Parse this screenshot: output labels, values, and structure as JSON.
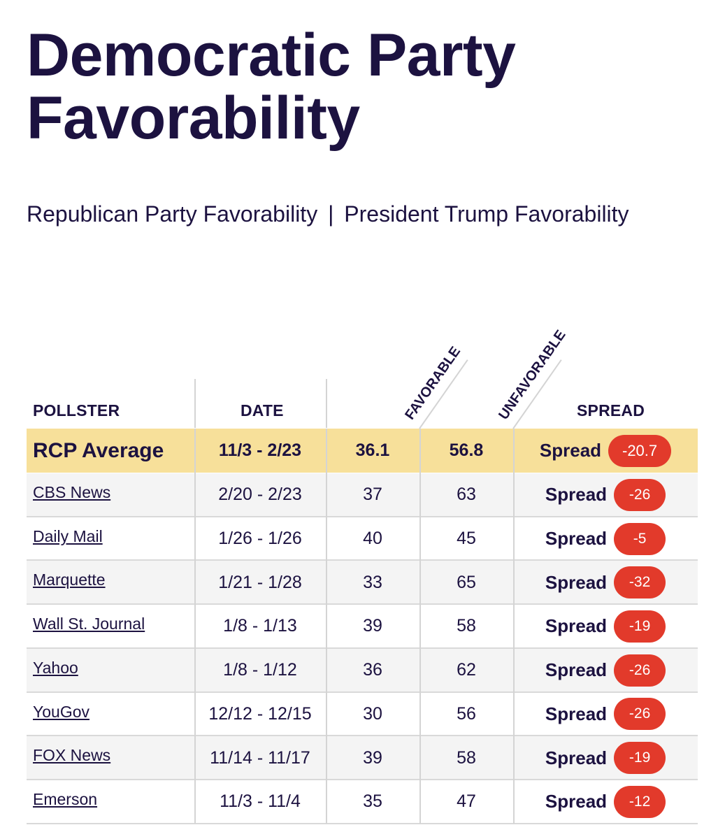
{
  "page": {
    "title": "Democratic Party Favorability",
    "related_links": [
      "Republican Party Favorability",
      "President Trump Favorability"
    ],
    "separator": "|"
  },
  "table": {
    "headers": {
      "pollster": "POLLSTER",
      "date": "DATE",
      "favorable": "FAVORABLE",
      "unfavorable": "UNFAVORABLE",
      "spread": "SPREAD"
    },
    "spread_label": "Spread",
    "average": {
      "pollster": "RCP Average",
      "date": "11/3 - 2/23",
      "favorable": "36.1",
      "unfavorable": "56.8",
      "spread": "-20.7"
    },
    "rows": [
      {
        "pollster": "CBS News",
        "date": "2/20 - 2/23",
        "favorable": "37",
        "unfavorable": "63",
        "spread": "-26"
      },
      {
        "pollster": "Daily Mail",
        "date": "1/26 - 1/26",
        "favorable": "40",
        "unfavorable": "45",
        "spread": "-5"
      },
      {
        "pollster": "Marquette",
        "date": "1/21 - 1/28",
        "favorable": "33",
        "unfavorable": "65",
        "spread": "-32"
      },
      {
        "pollster": "Wall St. Journal",
        "date": "1/8 - 1/13",
        "favorable": "39",
        "unfavorable": "58",
        "spread": "-19"
      },
      {
        "pollster": "Yahoo",
        "date": "1/8 - 1/12",
        "favorable": "36",
        "unfavorable": "62",
        "spread": "-26"
      },
      {
        "pollster": "YouGov",
        "date": "12/12 - 12/15",
        "favorable": "30",
        "unfavorable": "56",
        "spread": "-26"
      },
      {
        "pollster": "FOX News",
        "date": "11/14 - 11/17",
        "favorable": "39",
        "unfavorable": "58",
        "spread": "-19"
      },
      {
        "pollster": "Emerson",
        "date": "11/3 - 11/4",
        "favorable": "35",
        "unfavorable": "47",
        "spread": "-12"
      }
    ]
  },
  "colors": {
    "text": "#1c1240",
    "average_row": "#f7e09a",
    "spread_badge": "#e23a2b"
  }
}
